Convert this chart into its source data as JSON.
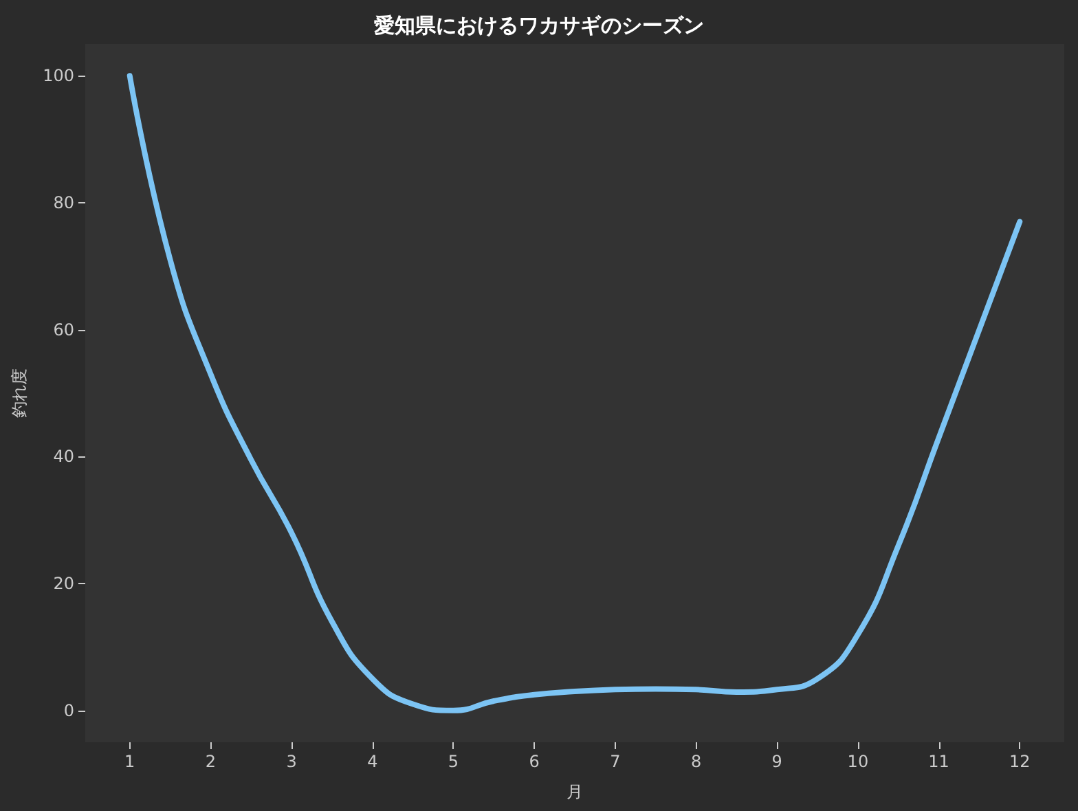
{
  "chart_data": {
    "type": "line",
    "title": "愛知県におけるワカサギのシーズン",
    "xlabel": "月",
    "ylabel": "釣れ度",
    "x": [
      1,
      1.5,
      2,
      2.5,
      3,
      3.5,
      4,
      4.5,
      5,
      5.5,
      6,
      6.5,
      7,
      7.5,
      8,
      8.5,
      9,
      9.5,
      10,
      10.5,
      11,
      11.5,
      12
    ],
    "series": [
      {
        "color": "#7cc4f4",
        "values": [
          100,
          71,
          53,
          39.5,
          28,
          14,
          5,
          1,
          0,
          1.5,
          2.5,
          3,
          3.3,
          3.4,
          3.3,
          2.9,
          3.3,
          5,
          12,
          26,
          43,
          60,
          77
        ]
      }
    ],
    "xlim": [
      0.45,
      12.55
    ],
    "xticks": [
      1,
      2,
      3,
      4,
      5,
      6,
      7,
      8,
      9,
      10,
      11,
      12
    ],
    "ylim": [
      -5,
      105
    ],
    "yticks": [
      0,
      20,
      40,
      60,
      80,
      100
    ],
    "grid": false,
    "marker": "none",
    "line_style": "solid"
  }
}
